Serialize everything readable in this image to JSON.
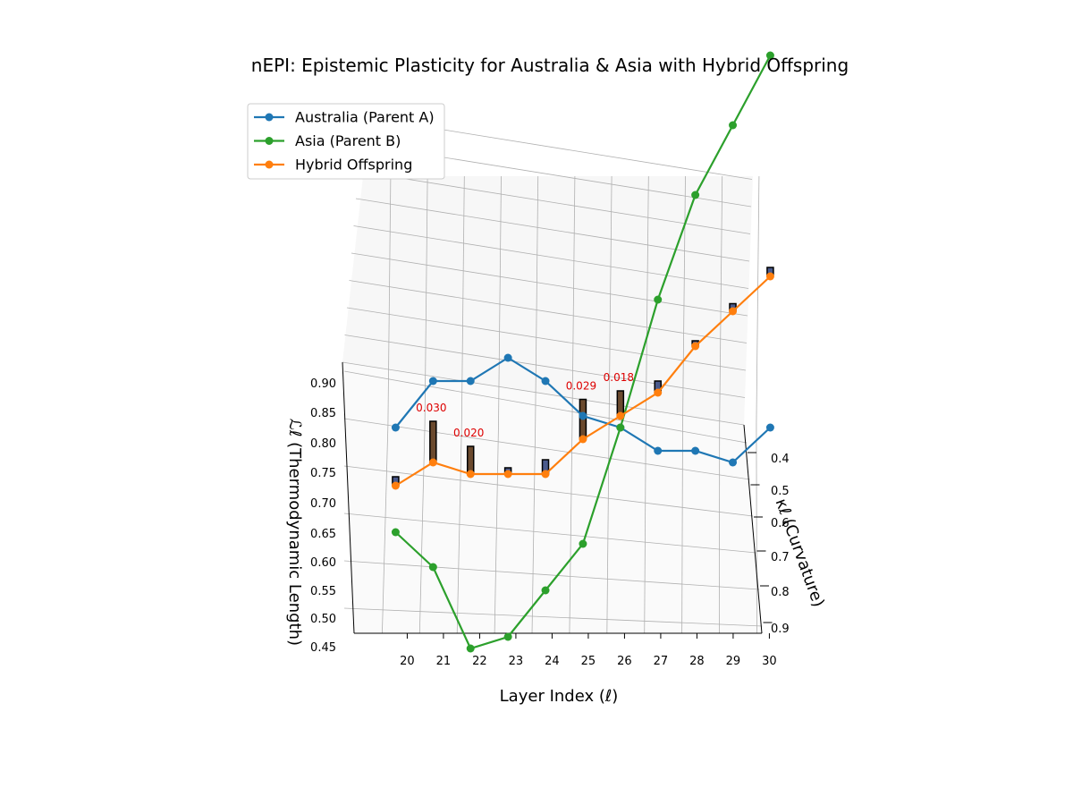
{
  "chart_data": {
    "type": "line",
    "title": "nEPI: Epistemic Plasticity for Australia & Asia with Hybrid Offspring",
    "xlabel": "Layer Index (ℓ)",
    "ylabel": "κℓ (Curvature)",
    "zlabel": "ℒℓ (Thermodynamic Length)",
    "x_ticks": [
      20,
      21,
      22,
      23,
      24,
      25,
      26,
      27,
      28,
      29,
      30
    ],
    "y_ticks": [
      0.4,
      0.5,
      0.6,
      0.7,
      0.8,
      0.9
    ],
    "z_ticks": [
      0.45,
      0.5,
      0.55,
      0.6,
      0.65,
      0.7,
      0.75,
      0.8,
      0.85,
      0.9
    ],
    "zlim": [
      0.45,
      0.92
    ],
    "grid": true,
    "legend_position": "top-left",
    "series": [
      {
        "name": "Australia (Parent A)",
        "color": "#1f77b4",
        "points": [
          {
            "x": 20,
            "y": 0.38,
            "z": 0.83
          },
          {
            "x": 21,
            "y": 0.38,
            "z": 0.87
          },
          {
            "x": 22,
            "y": 0.38,
            "z": 0.87
          },
          {
            "x": 23,
            "y": 0.38,
            "z": 0.89
          },
          {
            "x": 24,
            "y": 0.38,
            "z": 0.87
          },
          {
            "x": 25,
            "y": 0.38,
            "z": 0.84
          },
          {
            "x": 26,
            "y": 0.38,
            "z": 0.83
          },
          {
            "x": 27,
            "y": 0.38,
            "z": 0.81
          },
          {
            "x": 28,
            "y": 0.38,
            "z": 0.81
          },
          {
            "x": 29,
            "y": 0.38,
            "z": 0.8
          },
          {
            "x": 30,
            "y": 0.38,
            "z": 0.83
          }
        ]
      },
      {
        "name": "Asia (Parent B)",
        "color": "#2ca02c",
        "points": [
          {
            "x": 20,
            "y": 0.38,
            "z": 0.74
          },
          {
            "x": 21,
            "y": 0.38,
            "z": 0.71
          },
          {
            "x": 22,
            "y": 0.38,
            "z": 0.64
          },
          {
            "x": 23,
            "y": 0.38,
            "z": 0.65
          },
          {
            "x": 24,
            "y": 0.38,
            "z": 0.69
          },
          {
            "x": 25,
            "y": 0.38,
            "z": 0.73
          },
          {
            "x": 26,
            "y": 0.38,
            "z": 0.83
          },
          {
            "x": 27,
            "y": 0.38,
            "z": 0.94
          },
          {
            "x": 28,
            "y": 0.38,
            "z": 1.03
          },
          {
            "x": 29,
            "y": 0.38,
            "z": 1.09
          },
          {
            "x": 30,
            "y": 0.38,
            "z": 1.15
          }
        ]
      },
      {
        "name": "Hybrid Offspring",
        "color": "#ff7f0e",
        "points": [
          {
            "x": 20,
            "y": 0.38,
            "z": 0.78
          },
          {
            "x": 21,
            "y": 0.38,
            "z": 0.8
          },
          {
            "x": 22,
            "y": 0.38,
            "z": 0.79
          },
          {
            "x": 23,
            "y": 0.38,
            "z": 0.79
          },
          {
            "x": 24,
            "y": 0.38,
            "z": 0.79
          },
          {
            "x": 25,
            "y": 0.38,
            "z": 0.82
          },
          {
            "x": 26,
            "y": 0.38,
            "z": 0.84
          },
          {
            "x": 27,
            "y": 0.38,
            "z": 0.86
          },
          {
            "x": 28,
            "y": 0.38,
            "z": 0.9
          },
          {
            "x": 29,
            "y": 0.38,
            "z": 0.93
          },
          {
            "x": 30,
            "y": 0.38,
            "z": 0.96
          }
        ]
      }
    ],
    "bars": [
      {
        "x": 20,
        "value": 0.006,
        "color": "#4a5a8c"
      },
      {
        "x": 21,
        "value": 0.03,
        "color": "#6b4a2e",
        "label": "0.030"
      },
      {
        "x": 22,
        "value": 0.02,
        "color": "#6b4a2e",
        "label": "0.020"
      },
      {
        "x": 23,
        "value": 0.004,
        "color": "#4a5a8c"
      },
      {
        "x": 24,
        "value": 0.01,
        "color": "#4a5a8c"
      },
      {
        "x": 25,
        "value": 0.029,
        "color": "#6b4a2e",
        "label": "0.029"
      },
      {
        "x": 26,
        "value": 0.018,
        "color": "#6b4a2e",
        "label": "0.018"
      },
      {
        "x": 27,
        "value": 0.008,
        "color": "#4a5a8c"
      },
      {
        "x": 28,
        "value": 0.002,
        "color": "#4a5a8c"
      },
      {
        "x": 29,
        "value": 0.005,
        "color": "#4a5a8c"
      },
      {
        "x": 30,
        "value": 0.006,
        "color": "#4a5a8c"
      }
    ],
    "annotation_color": "#dd0000"
  }
}
